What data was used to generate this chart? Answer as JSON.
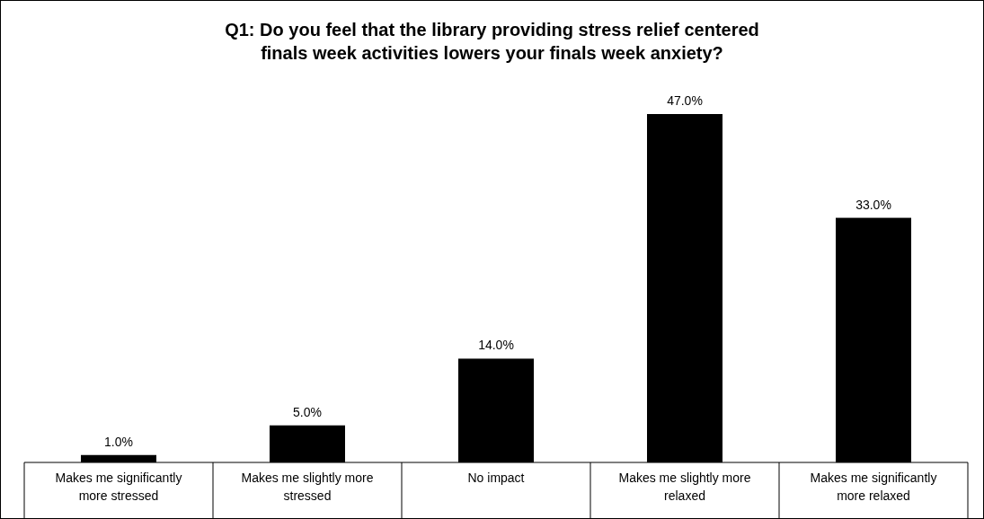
{
  "chart_data": {
    "type": "bar",
    "title": "Q1: Do you feel that the library providing stress relief centered finals week activities lowers your finals week anxiety?",
    "categories": [
      "Makes me significantly more stressed",
      "Makes me slightly more stressed",
      "No impact",
      "Makes me slightly more relaxed",
      "Makes me significantly more relaxed"
    ],
    "values": [
      1,
      5,
      14,
      47,
      33
    ],
    "value_labels": [
      "1.0%",
      "5.0%",
      "14.0%",
      "47.0%",
      "33.0%"
    ],
    "color": "#000000"
  }
}
